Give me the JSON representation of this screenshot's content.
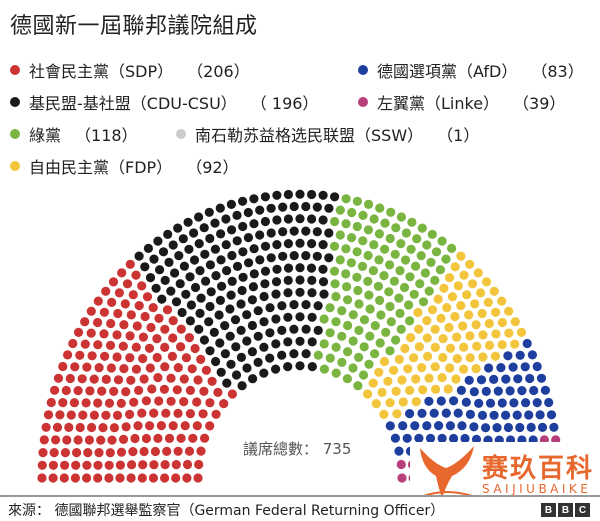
{
  "title": "德國新一屆聯邦議院組成",
  "legend": [
    {
      "label": "社會民主黨（SDP）",
      "count": "（206）",
      "color": "#cc3333"
    },
    {
      "label": "德國選項黨（AfD）",
      "count": "（83）",
      "color": "#1f3f9e"
    },
    {
      "label": "基民盟-基社盟（CDU-CSU）",
      "count": "（ 196）",
      "color": "#1a1a1a"
    },
    {
      "label": "左翼黨（Linke）",
      "count": "（39）",
      "color": "#b7407a"
    },
    {
      "label": "綠黨",
      "count": "（118）",
      "color": "#7ab441"
    },
    {
      "label": "南石勒苏益格选民联盟（SSW）",
      "count": "（1）",
      "color": "#cccccc"
    },
    {
      "label": "自由民主黨（FDP）",
      "count": "（92）",
      "color": "#f2c53d"
    }
  ],
  "total_label": "議席總數： 735",
  "source": "來源： 德國聯邦選舉監察官（German Federal Returning Officer）",
  "logo": [
    "B",
    "B",
    "C"
  ],
  "watermark": {
    "cn": "赛玖百科",
    "en": "SAIJIUBAIKE"
  },
  "chart_data": {
    "type": "parliament-hemicycle",
    "title": "德國新一屆聯邦議院組成",
    "total_seats": 735,
    "order": "left-to-right",
    "series": [
      {
        "name": "社會民主黨（SDP）",
        "seats": 206,
        "color": "#cc3333"
      },
      {
        "name": "基民盟-基社盟（CDU-CSU）",
        "seats": 196,
        "color": "#1a1a1a"
      },
      {
        "name": "綠黨",
        "seats": 118,
        "color": "#7ab441"
      },
      {
        "name": "自由民主黨（FDP）",
        "seats": 92,
        "color": "#f2c53d"
      },
      {
        "name": "德國選項黨（AfD）",
        "seats": 83,
        "color": "#1f3f9e"
      },
      {
        "name": "左翼黨（Linke）",
        "seats": 39,
        "color": "#b7407a"
      },
      {
        "name": "南石勒苏益格选民联盟（SSW）",
        "seats": 1,
        "color": "#cccccc"
      }
    ],
    "legend_position": "top",
    "annotation": "議席總數： 735"
  }
}
